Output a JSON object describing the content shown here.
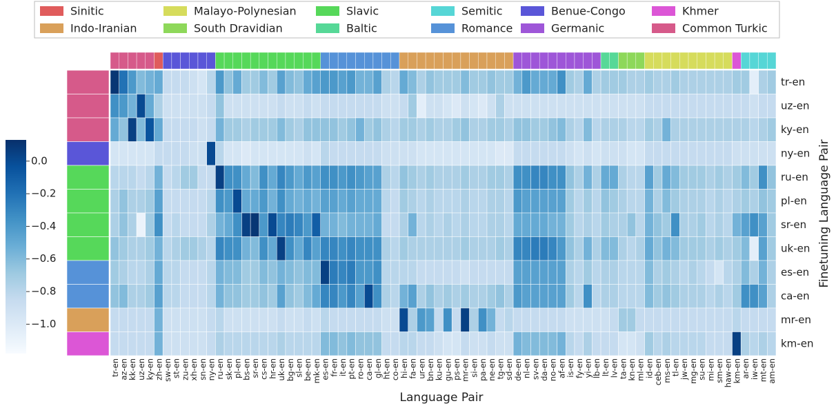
{
  "chart_data": {
    "type": "heatmap",
    "colormap": "Blues",
    "xlabel": "Language Pair",
    "ylabel": "Finetuning Language Pair",
    "legend": [
      {
        "name": "Sinitic",
        "color": "#e05c5c"
      },
      {
        "name": "Malayo-Polynesian",
        "color": "#d6dc5c"
      },
      {
        "name": "Slavic",
        "color": "#56d85a"
      },
      {
        "name": "Semitic",
        "color": "#56d6d6"
      },
      {
        "name": "Benue-Congo",
        "color": "#5a56d8"
      },
      {
        "name": "Khmer",
        "color": "#dc56d6"
      },
      {
        "name": "Indo-Iranian",
        "color": "#d9a05a"
      },
      {
        "name": "South Dravidian",
        "color": "#8ed85a"
      },
      {
        "name": "Baltic",
        "color": "#56d897"
      },
      {
        "name": "Romance",
        "color": "#5692d8"
      },
      {
        "name": "Germanic",
        "color": "#9e56d8"
      },
      {
        "name": "Common Turkic",
        "color": "#d65a8a"
      }
    ],
    "x": [
      "tr-en",
      "az-en",
      "kk-en",
      "uz-en",
      "ky-en",
      "zh-en",
      "sw-en",
      "st-en",
      "zu-en",
      "xh-en",
      "sn-en",
      "ny-en",
      "ru-en",
      "sk-en",
      "pl-en",
      "bs-en",
      "sr-en",
      "cs-en",
      "hr-en",
      "uk-en",
      "bg-en",
      "sl-en",
      "be-en",
      "mk-en",
      "es-en",
      "fr-en",
      "it-en",
      "pt-en",
      "ro-en",
      "ca-en",
      "gl-en",
      "ht-en",
      "co-en",
      "hi-en",
      "fa-en",
      "ur-en",
      "bn-en",
      "ku-en",
      "gu-en",
      "ps-en",
      "mr-en",
      "si-en",
      "pa-en",
      "ne-en",
      "tg-en",
      "sd-en",
      "de-en",
      "nl-en",
      "sv-en",
      "da-en",
      "no-en",
      "af-en",
      "is-en",
      "fy-en",
      "yi-en",
      "lb-en",
      "lt-en",
      "lv-en",
      "ta-en",
      "kn-en",
      "ml-en",
      "id-en",
      "ceb-en",
      "ms-en",
      "tl-en",
      "jw-en",
      "mg-en",
      "su-en",
      "mi-en",
      "sm-en",
      "haw-en",
      "km-en",
      "ar-en",
      "iw-en",
      "mt-en",
      "am-en"
    ],
    "x_family": [
      "Common Turkic",
      "Common Turkic",
      "Common Turkic",
      "Common Turkic",
      "Common Turkic",
      "Sinitic",
      "Benue-Congo",
      "Benue-Congo",
      "Benue-Congo",
      "Benue-Congo",
      "Benue-Congo",
      "Benue-Congo",
      "Slavic",
      "Slavic",
      "Slavic",
      "Slavic",
      "Slavic",
      "Slavic",
      "Slavic",
      "Slavic",
      "Slavic",
      "Slavic",
      "Slavic",
      "Slavic",
      "Romance",
      "Romance",
      "Romance",
      "Romance",
      "Romance",
      "Romance",
      "Romance",
      "Romance",
      "Romance",
      "Indo-Iranian",
      "Indo-Iranian",
      "Indo-Iranian",
      "Indo-Iranian",
      "Indo-Iranian",
      "Indo-Iranian",
      "Indo-Iranian",
      "Indo-Iranian",
      "Indo-Iranian",
      "Indo-Iranian",
      "Indo-Iranian",
      "Indo-Iranian",
      "Indo-Iranian",
      "Germanic",
      "Germanic",
      "Germanic",
      "Germanic",
      "Germanic",
      "Germanic",
      "Germanic",
      "Germanic",
      "Germanic",
      "Germanic",
      "Baltic",
      "Baltic",
      "South Dravidian",
      "South Dravidian",
      "South Dravidian",
      "Malayo-Polynesian",
      "Malayo-Polynesian",
      "Malayo-Polynesian",
      "Malayo-Polynesian",
      "Malayo-Polynesian",
      "Malayo-Polynesian",
      "Malayo-Polynesian",
      "Malayo-Polynesian",
      "Malayo-Polynesian",
      "Malayo-Polynesian",
      "Khmer",
      "Semitic",
      "Semitic",
      "Semitic",
      "Semitic"
    ],
    "y": [
      "tr-en",
      "uz-en",
      "ky-en",
      "ny-en",
      "ru-en",
      "pl-en",
      "sr-en",
      "uk-en",
      "es-en",
      "ca-en",
      "mr-en",
      "km-en"
    ],
    "y_family": [
      "Common Turkic",
      "Common Turkic",
      "Common Turkic",
      "Benue-Congo",
      "Slavic",
      "Slavic",
      "Slavic",
      "Slavic",
      "Romance",
      "Romance",
      "Indo-Iranian",
      "Khmer"
    ],
    "values": [
      [
        0.1,
        -0.2,
        -0.4,
        -0.6,
        -0.55,
        -0.5,
        -0.85,
        -0.85,
        -0.85,
        -0.9,
        -0.95,
        -0.8,
        -0.4,
        -0.65,
        -0.5,
        -0.7,
        -0.7,
        -0.6,
        -0.7,
        -0.45,
        -0.6,
        -0.65,
        -0.5,
        -0.45,
        -0.4,
        -0.4,
        -0.45,
        -0.4,
        -0.55,
        -0.55,
        -0.45,
        -0.75,
        -0.8,
        -0.5,
        -0.6,
        -0.75,
        -0.65,
        -0.7,
        -0.7,
        -0.7,
        -0.6,
        -0.7,
        -0.7,
        -0.65,
        -0.7,
        -0.7,
        -0.55,
        -0.4,
        -0.5,
        -0.5,
        -0.5,
        -0.35,
        -0.7,
        -0.75,
        -0.5,
        -0.75,
        -0.7,
        -0.7,
        -0.7,
        -0.75,
        -0.75,
        -0.7,
        -0.75,
        -0.75,
        -0.7,
        -0.75,
        -0.75,
        -0.75,
        -0.75,
        -0.75,
        -0.75,
        -0.7,
        -0.7,
        -1.05,
        -0.75,
        -0.7
      ],
      [
        -0.35,
        -0.4,
        -0.55,
        0.0,
        -0.5,
        -0.75,
        -0.9,
        -0.9,
        -0.9,
        -0.9,
        -0.9,
        -0.85,
        -0.65,
        -0.9,
        -0.9,
        -0.9,
        -0.9,
        -0.9,
        -0.9,
        -0.85,
        -0.9,
        -0.9,
        -0.85,
        -0.9,
        -0.85,
        -0.85,
        -0.85,
        -0.85,
        -0.85,
        -0.85,
        -0.85,
        -0.9,
        -0.9,
        -0.85,
        -0.7,
        -1.05,
        -0.9,
        -0.9,
        -0.95,
        -1.0,
        -0.9,
        -0.95,
        -1.0,
        -0.9,
        -0.75,
        -0.9,
        -0.9,
        -0.9,
        -0.9,
        -0.9,
        -0.9,
        -0.9,
        -0.9,
        -0.9,
        -0.9,
        -0.9,
        -0.9,
        -0.9,
        -0.9,
        -0.9,
        -0.9,
        -0.85,
        -0.85,
        -0.85,
        -0.85,
        -0.85,
        -0.85,
        -0.85,
        -0.85,
        -0.85,
        -0.85,
        -0.85,
        -0.85,
        -0.9,
        -0.85,
        -0.85
      ],
      [
        -0.5,
        -0.65,
        0.05,
        -0.6,
        -0.05,
        -0.5,
        -0.85,
        -0.85,
        -0.85,
        -0.85,
        -0.9,
        -0.85,
        -0.55,
        -0.7,
        -0.7,
        -0.75,
        -0.7,
        -0.7,
        -0.7,
        -0.6,
        -0.7,
        -0.75,
        -0.65,
        -0.65,
        -0.65,
        -0.65,
        -0.7,
        -0.65,
        -0.55,
        -0.7,
        -0.65,
        -0.75,
        -0.8,
        -0.7,
        -0.7,
        -0.75,
        -0.7,
        -0.75,
        -0.75,
        -0.7,
        -0.65,
        -0.75,
        -0.75,
        -0.7,
        -0.7,
        -0.75,
        -0.65,
        -0.65,
        -0.7,
        -0.7,
        -0.65,
        -0.6,
        -0.75,
        -0.8,
        -0.6,
        -0.8,
        -0.75,
        -0.75,
        -0.75,
        -0.8,
        -0.8,
        -0.7,
        -0.75,
        -0.55,
        -0.75,
        -0.75,
        -0.75,
        -0.75,
        -0.75,
        -0.75,
        -0.75,
        -0.75,
        -0.75,
        -0.8,
        -0.75,
        -0.7
      ],
      [
        -0.95,
        -0.95,
        -0.95,
        -0.95,
        -0.95,
        -0.85,
        -0.85,
        -0.85,
        -0.85,
        -0.9,
        -0.9,
        0.0,
        -0.8,
        -0.95,
        -0.95,
        -1.0,
        -0.95,
        -0.95,
        -0.95,
        -0.95,
        -0.95,
        -0.95,
        -0.9,
        -0.95,
        -0.8,
        -0.85,
        -0.85,
        -0.85,
        -0.85,
        -0.85,
        -0.85,
        -0.9,
        -0.9,
        -0.9,
        -0.9,
        -0.95,
        -0.95,
        -0.95,
        -0.95,
        -0.95,
        -0.95,
        -0.95,
        -0.95,
        -0.95,
        -1.0,
        -1.0,
        -0.85,
        -0.85,
        -0.85,
        -0.85,
        -0.85,
        -0.85,
        -0.9,
        -0.95,
        -0.9,
        -0.95,
        -0.9,
        -0.9,
        -0.9,
        -0.95,
        -0.95,
        -0.85,
        -0.85,
        -0.85,
        -0.85,
        -0.85,
        -0.85,
        -0.85,
        -0.85,
        -0.85,
        -0.85,
        -0.9,
        -0.9,
        -0.9,
        -0.9,
        -0.9
      ],
      [
        -0.8,
        -0.8,
        -0.8,
        -0.85,
        -0.8,
        -0.55,
        -0.85,
        -0.8,
        -0.7,
        -0.7,
        -0.85,
        -0.85,
        0.05,
        -0.35,
        -0.35,
        -0.5,
        -0.6,
        -0.35,
        -0.5,
        -0.3,
        -0.4,
        -0.5,
        -0.4,
        -0.45,
        -0.35,
        -0.35,
        -0.4,
        -0.35,
        -0.4,
        -0.45,
        -0.45,
        -0.75,
        -0.8,
        -0.65,
        -0.7,
        -0.75,
        -0.7,
        -0.75,
        -0.75,
        -0.75,
        -0.7,
        -0.75,
        -0.75,
        -0.7,
        -0.7,
        -0.75,
        -0.35,
        -0.35,
        -0.3,
        -0.3,
        -0.35,
        -0.35,
        -0.65,
        -0.75,
        -0.55,
        -0.75,
        -0.5,
        -0.5,
        -0.75,
        -0.8,
        -0.8,
        -0.45,
        -0.7,
        -0.5,
        -0.6,
        -0.7,
        -0.7,
        -0.7,
        -0.75,
        -0.7,
        -0.75,
        -0.7,
        -0.6,
        -0.7,
        -0.35,
        -0.65
      ],
      [
        -0.75,
        -0.65,
        -0.75,
        -0.75,
        -0.7,
        -0.45,
        -0.85,
        -0.85,
        -0.85,
        -0.85,
        -0.85,
        -0.8,
        -0.35,
        -0.4,
        0.0,
        -0.5,
        -0.5,
        -0.4,
        -0.55,
        -0.35,
        -0.5,
        -0.55,
        -0.5,
        -0.55,
        -0.45,
        -0.45,
        -0.5,
        -0.45,
        -0.5,
        -0.5,
        -0.5,
        -0.8,
        -0.85,
        -0.7,
        -0.75,
        -0.8,
        -0.75,
        -0.8,
        -0.8,
        -0.8,
        -0.75,
        -0.8,
        -0.8,
        -0.75,
        -0.75,
        -0.8,
        -0.4,
        -0.45,
        -0.45,
        -0.45,
        -0.45,
        -0.45,
        -0.7,
        -0.8,
        -0.7,
        -0.8,
        -0.65,
        -0.7,
        -0.75,
        -0.8,
        -0.8,
        -0.55,
        -0.75,
        -0.6,
        -0.7,
        -0.75,
        -0.75,
        -0.75,
        -0.8,
        -0.75,
        -0.8,
        -0.75,
        -0.7,
        -0.75,
        -0.65,
        -0.7
      ],
      [
        -0.75,
        -0.65,
        -0.75,
        -1.1,
        -0.7,
        -0.35,
        -0.85,
        -0.8,
        -0.85,
        -0.85,
        -0.85,
        -0.75,
        -0.55,
        -0.5,
        -0.35,
        0.05,
        0.1,
        -0.4,
        0.0,
        -0.3,
        -0.25,
        -0.3,
        -0.4,
        -0.1,
        -0.55,
        -0.55,
        -0.6,
        -0.55,
        -0.55,
        -0.55,
        -0.5,
        -0.85,
        -0.85,
        -0.75,
        -0.55,
        -0.8,
        -0.75,
        -0.8,
        -0.75,
        -0.8,
        -0.75,
        -0.8,
        -0.8,
        -0.75,
        -0.75,
        -0.8,
        -0.5,
        -0.5,
        -0.5,
        -0.5,
        -0.55,
        -0.55,
        -0.7,
        -0.8,
        -0.75,
        -0.8,
        -0.7,
        -0.75,
        -0.75,
        -0.65,
        -0.8,
        -0.55,
        -0.65,
        -0.7,
        -0.35,
        -0.75,
        -0.75,
        -0.7,
        -0.8,
        -0.75,
        -0.8,
        -0.55,
        -0.45,
        -0.35,
        -0.45,
        -0.7
      ],
      [
        -0.65,
        -0.7,
        -0.75,
        -0.75,
        -0.7,
        -0.55,
        -0.8,
        -0.75,
        -0.7,
        -0.7,
        -0.75,
        -0.8,
        -0.3,
        -0.35,
        -0.35,
        -0.55,
        -0.6,
        -0.35,
        -0.5,
        0.05,
        -0.35,
        -0.5,
        -0.3,
        -0.45,
        -0.3,
        -0.3,
        -0.35,
        -0.3,
        -0.35,
        -0.35,
        -0.35,
        -0.75,
        -0.8,
        -0.7,
        -0.75,
        -0.75,
        -0.75,
        -0.75,
        -0.75,
        -0.75,
        -0.7,
        -0.75,
        -0.75,
        -0.75,
        -0.7,
        -0.75,
        -0.3,
        -0.3,
        -0.25,
        -0.25,
        -0.3,
        -0.4,
        -0.65,
        -0.75,
        -0.55,
        -0.75,
        -0.6,
        -0.6,
        -0.75,
        -0.8,
        -0.75,
        -0.5,
        -0.65,
        -0.55,
        -0.6,
        -0.7,
        -0.7,
        -0.7,
        -0.75,
        -0.7,
        -0.75,
        -0.7,
        -0.6,
        -1.05,
        -0.45,
        -0.7
      ],
      [
        -0.7,
        -0.75,
        -0.8,
        -0.8,
        -0.75,
        -0.5,
        -0.8,
        -0.8,
        -0.85,
        -0.85,
        -0.85,
        -0.8,
        -0.55,
        -0.6,
        -0.6,
        -0.7,
        -0.7,
        -0.6,
        -0.65,
        -0.55,
        -0.6,
        -0.65,
        -0.6,
        -0.6,
        0.05,
        -0.25,
        -0.3,
        -0.25,
        -0.4,
        -0.4,
        -0.35,
        -0.8,
        -0.8,
        -0.8,
        -0.8,
        -0.85,
        -0.85,
        -0.85,
        -0.85,
        -0.85,
        -0.9,
        -0.85,
        -0.85,
        -0.85,
        -0.85,
        -0.85,
        -0.45,
        -0.45,
        -0.45,
        -0.45,
        -0.45,
        -0.45,
        -0.75,
        -0.8,
        -0.7,
        -0.8,
        -0.75,
        -0.75,
        -0.8,
        -0.8,
        -0.8,
        -0.6,
        -0.75,
        -0.7,
        -0.75,
        -0.8,
        -0.75,
        -0.8,
        -0.85,
        -0.95,
        -0.8,
        -0.75,
        -0.6,
        -0.75,
        -0.55,
        -0.75
      ],
      [
        -0.65,
        -0.6,
        -0.75,
        -0.75,
        -0.7,
        -0.45,
        -0.8,
        -0.8,
        -0.85,
        -0.85,
        -0.85,
        -0.8,
        -0.55,
        -0.65,
        -0.65,
        -0.7,
        -0.7,
        -0.65,
        -0.7,
        -0.45,
        -0.65,
        -0.7,
        -0.6,
        -0.5,
        -0.3,
        -0.3,
        -0.4,
        -0.3,
        -0.45,
        0.0,
        -0.35,
        -0.75,
        -0.8,
        -0.55,
        -0.45,
        -0.75,
        -0.65,
        -0.75,
        -0.7,
        -0.75,
        -0.7,
        -0.75,
        -0.75,
        -0.7,
        -0.65,
        -0.75,
        -0.4,
        -0.45,
        -0.45,
        -0.45,
        -0.45,
        -0.45,
        -0.7,
        -0.8,
        -0.35,
        -0.8,
        -0.75,
        -0.75,
        -0.8,
        -0.8,
        -0.8,
        -0.6,
        -0.7,
        -0.65,
        -0.7,
        -0.75,
        -0.75,
        -0.75,
        -0.8,
        -0.75,
        -0.8,
        -0.7,
        -0.35,
        -0.35,
        -0.45,
        -0.75
      ],
      [
        -0.85,
        -0.85,
        -0.85,
        -0.85,
        -0.85,
        -0.55,
        -0.9,
        -0.9,
        -0.9,
        -0.9,
        -0.9,
        -0.85,
        -0.8,
        -0.9,
        -0.9,
        -0.9,
        -0.9,
        -0.9,
        -0.9,
        -0.85,
        -0.9,
        -0.9,
        -0.85,
        -0.9,
        -0.8,
        -0.85,
        -0.85,
        -0.85,
        -0.85,
        -0.85,
        -0.85,
        -0.9,
        -0.9,
        0.0,
        -0.75,
        -0.4,
        -0.45,
        -0.85,
        -0.35,
        -0.85,
        0.05,
        -0.75,
        -0.35,
        -0.55,
        -0.85,
        -0.8,
        -0.85,
        -0.85,
        -0.85,
        -0.85,
        -0.85,
        -0.85,
        -0.9,
        -0.9,
        -0.9,
        -0.9,
        -0.9,
        -0.85,
        -0.7,
        -0.7,
        -0.85,
        -0.85,
        -0.85,
        -0.85,
        -0.85,
        -0.85,
        -0.85,
        -0.85,
        -0.85,
        -0.85,
        -0.85,
        -0.8,
        -0.85,
        -0.85,
        -0.85,
        -0.85
      ],
      [
        -0.85,
        -0.85,
        -0.85,
        -0.85,
        -0.85,
        -0.55,
        -0.9,
        -0.9,
        -0.9,
        -0.9,
        -0.9,
        -0.85,
        -0.75,
        -0.8,
        -0.8,
        -0.8,
        -0.8,
        -0.8,
        -0.8,
        -0.75,
        -0.8,
        -0.8,
        -0.8,
        -0.8,
        -0.6,
        -0.6,
        -0.65,
        -0.6,
        -0.65,
        -0.65,
        -0.65,
        -0.85,
        -0.85,
        -0.8,
        -0.8,
        -0.85,
        -0.85,
        -0.9,
        -0.95,
        -0.95,
        -0.85,
        -0.9,
        -0.9,
        -0.85,
        -0.9,
        -0.9,
        -0.55,
        -0.6,
        -0.6,
        -0.6,
        -0.6,
        -0.55,
        -0.8,
        -0.85,
        -0.75,
        -0.85,
        -0.85,
        -0.85,
        -0.95,
        -0.95,
        -0.9,
        -0.7,
        -0.8,
        -0.75,
        -0.8,
        -0.8,
        -0.8,
        -0.8,
        -0.85,
        -0.85,
        -0.85,
        0.05,
        -0.75,
        -0.8,
        -0.75,
        -0.8
      ]
    ],
    "clim": [
      -1.18,
      0.13
    ],
    "cticks": [
      {
        "value": 0.0,
        "label": "0.0"
      },
      {
        "value": -0.2,
        "label": "−0.2"
      },
      {
        "value": -0.4,
        "label": "−0.4"
      },
      {
        "value": -0.6,
        "label": "−0.6"
      },
      {
        "value": -0.8,
        "label": "−0.8"
      },
      {
        "value": -1.0,
        "label": "−1.0"
      }
    ]
  }
}
